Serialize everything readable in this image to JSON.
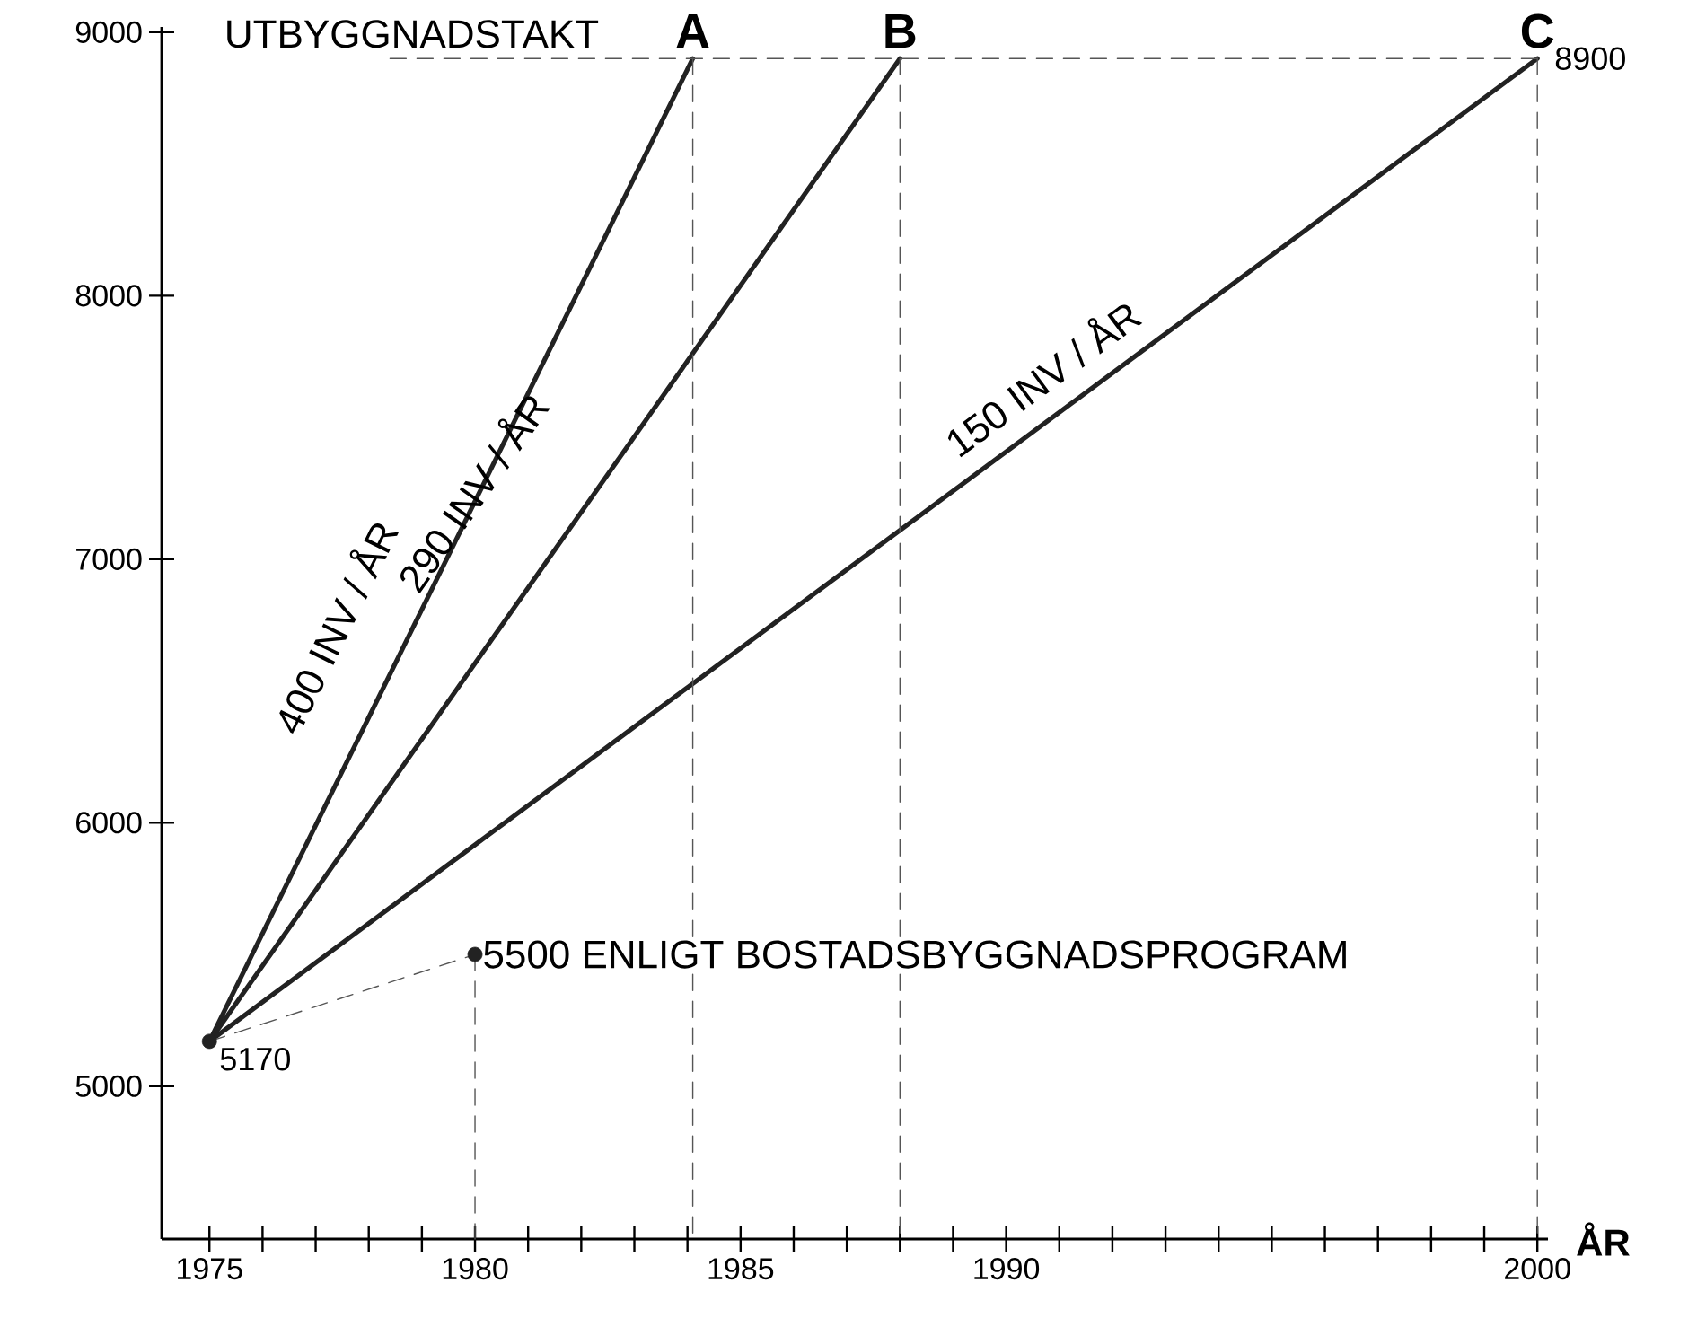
{
  "chart_data": {
    "type": "line",
    "title": "UTBYGGNADSTAKT",
    "xlabel": "ÅR",
    "xlim": [
      1974.1,
      2000.2
    ],
    "ylim": [
      4420,
      9020
    ],
    "xticks": [
      1975,
      {
        "value": 1976,
        "label": null
      },
      {
        "value": 1977,
        "label": null
      },
      {
        "value": 1978,
        "label": null
      },
      {
        "value": 1979,
        "label": null
      },
      1980,
      {
        "value": 1981,
        "label": null
      },
      {
        "value": 1982,
        "label": null
      },
      {
        "value": 1983,
        "label": null
      },
      {
        "value": 1984,
        "label": null
      },
      1985,
      {
        "value": 1986,
        "label": null
      },
      {
        "value": 1987,
        "label": null
      },
      {
        "value": 1988,
        "label": null
      },
      {
        "value": 1989,
        "label": null
      },
      1990,
      {
        "value": 1991,
        "label": null
      },
      {
        "value": 1992,
        "label": null
      },
      {
        "value": 1993,
        "label": null
      },
      {
        "value": 1994,
        "label": null
      },
      {
        "value": 1995,
        "label": null
      },
      {
        "value": 1996,
        "label": null
      },
      {
        "value": 1997,
        "label": null
      },
      {
        "value": 1998,
        "label": null
      },
      {
        "value": 1999,
        "label": null
      },
      2000
    ],
    "yticks": [
      5000,
      6000,
      7000,
      8000,
      9000
    ],
    "grid": false,
    "series": [
      {
        "color": "#222222",
        "x": [
          1975,
          1984.1
        ],
        "values": [
          5170,
          8900
        ],
        "line_style": "solid"
      },
      {
        "color": "#222222",
        "x": [
          1975,
          1988
        ],
        "values": [
          5170,
          8900
        ],
        "line_style": "solid"
      },
      {
        "color": "#222222",
        "x": [
          1975,
          2000
        ],
        "values": [
          5170,
          8900
        ],
        "line_style": "solid"
      },
      {
        "color": "#555555",
        "x": [
          1975,
          1980
        ],
        "values": [
          5170,
          5500
        ],
        "line_style": "dashed"
      },
      {
        "color": "#555555",
        "x": [
          1978.4,
          2000
        ],
        "values": [
          8900,
          8900
        ],
        "line_style": "dashed"
      },
      {
        "color": "#555555",
        "x": [
          1980,
          1980
        ],
        "values": [
          5500,
          4420
        ],
        "line_style": "dashed"
      },
      {
        "color": "#555555",
        "x": [
          1984.1,
          1984.1
        ],
        "values": [
          8900,
          4420
        ],
        "line_style": "dashed"
      },
      {
        "color": "#555555",
        "x": [
          1988,
          1988
        ],
        "values": [
          8900,
          4420
        ],
        "line_style": "dashed"
      },
      {
        "color": "#555555",
        "x": [
          2000,
          2000
        ],
        "values": [
          8900,
          4420
        ],
        "line_style": "dashed"
      },
      {
        "type": "scatter",
        "color": "#222222",
        "x": [
          1975,
          1980
        ],
        "values": [
          5170,
          5500
        ]
      }
    ],
    "annotations": [
      {
        "text": "400 INV / ÅR",
        "x": 1978.55,
        "y": 6625
      },
      {
        "text": "290 INV / ÅR",
        "x": 1981.5,
        "y": 7035
      },
      {
        "text": "150 INV / ÅR",
        "x": 1991.1,
        "y": 7572
      },
      "A",
      "B",
      "C",
      {
        "text": "8900",
        "x": 2000,
        "y": 8900
      },
      {
        "text": "5170",
        "x": 1975,
        "y": 5170
      },
      {
        "text": "5500 ENLIGT BOSTADSBYGGNADSPROGRAM",
        "x": 1980,
        "y": 5500
      }
    ]
  }
}
